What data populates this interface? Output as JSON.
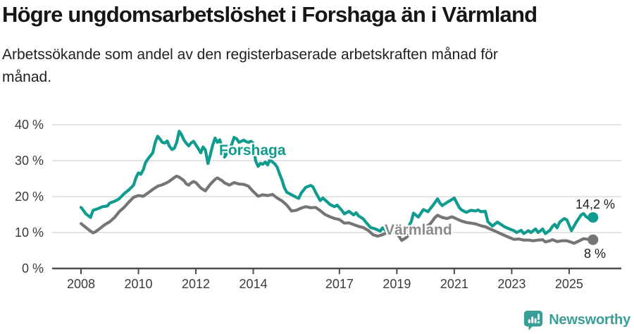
{
  "header": {
    "title": "Högre ungdomsarbetslöshet i Forshaga än i Värmland",
    "subtitle": "Arbetssökande som andel av den registerbaserade arbetskraften månad för\nmånad."
  },
  "footer": {
    "brand": "Newsworthy"
  },
  "colors": {
    "forshaga": "#0f9b8e",
    "varmland": "#757575",
    "varmland_label": "#8a8a8a",
    "grid": "#dbdbdb",
    "axis": "#4c4c4c",
    "tick_text": "#3b3b3b",
    "value_text": "#1c1c1c",
    "logo_teal": "#3a9e98",
    "background": "#ffffff"
  },
  "chart_data": {
    "type": "line",
    "title": "Högre ungdomsarbetslöshet i Forshaga än i Värmland",
    "subtitle": "Arbetssökande som andel av den registerbaserade arbetskraften månad för månad.",
    "xlabel": "",
    "ylabel": "",
    "x_unit": "year (monthly observations)",
    "y_unit": "%",
    "ylim": [
      0,
      40
    ],
    "xlim": [
      2007,
      2026.6
    ],
    "grid": "horizontal",
    "legend_position": "inline-labels",
    "yticks": [
      {
        "value": 0,
        "label": "0 %"
      },
      {
        "value": 10,
        "label": "10 %"
      },
      {
        "value": 20,
        "label": "20 %"
      },
      {
        "value": 30,
        "label": "30 %"
      },
      {
        "value": 40,
        "label": "40 %"
      }
    ],
    "xticks": [
      {
        "value": 2008,
        "label": "2008"
      },
      {
        "value": 2010,
        "label": "2010"
      },
      {
        "value": 2012,
        "label": "2012"
      },
      {
        "value": 2014,
        "label": "2014"
      },
      {
        "value": 2017,
        "label": "2017"
      },
      {
        "value": 2019,
        "label": "2019"
      },
      {
        "value": 2021,
        "label": "2021"
      },
      {
        "value": 2023,
        "label": "2023"
      },
      {
        "value": 2025,
        "label": "2025"
      }
    ],
    "series": [
      {
        "name": "Forshaga",
        "inline_label": "Forshaga",
        "end_label": "14,2 %",
        "last_value": 14.2,
        "color": "#0f9b8e",
        "points": [
          [
            2008.0,
            17.0
          ],
          [
            2008.08,
            16.2
          ],
          [
            2008.17,
            15.2
          ],
          [
            2008.33,
            14.2
          ],
          [
            2008.42,
            16.2
          ],
          [
            2008.5,
            16.4
          ],
          [
            2008.58,
            16.6
          ],
          [
            2008.75,
            17.2
          ],
          [
            2008.92,
            17.4
          ],
          [
            2009.0,
            18.2
          ],
          [
            2009.17,
            18.7
          ],
          [
            2009.33,
            19.4
          ],
          [
            2009.5,
            20.8
          ],
          [
            2009.67,
            21.9
          ],
          [
            2009.83,
            23.2
          ],
          [
            2009.92,
            25.4
          ],
          [
            2010.0,
            26.6
          ],
          [
            2010.08,
            26.2
          ],
          [
            2010.17,
            27.5
          ],
          [
            2010.25,
            29.5
          ],
          [
            2010.33,
            30.5
          ],
          [
            2010.5,
            32.2
          ],
          [
            2010.58,
            35.0
          ],
          [
            2010.67,
            36.8
          ],
          [
            2010.75,
            36.0
          ],
          [
            2010.83,
            35.1
          ],
          [
            2010.92,
            34.9
          ],
          [
            2011.0,
            35.5
          ],
          [
            2011.08,
            34.0
          ],
          [
            2011.17,
            33.1
          ],
          [
            2011.25,
            33.5
          ],
          [
            2011.33,
            35.0
          ],
          [
            2011.42,
            38.2
          ],
          [
            2011.5,
            37.2
          ],
          [
            2011.58,
            35.8
          ],
          [
            2011.67,
            34.8
          ],
          [
            2011.75,
            34.1
          ],
          [
            2011.83,
            34.9
          ],
          [
            2011.92,
            35.4
          ],
          [
            2012.0,
            34.4
          ],
          [
            2012.08,
            33.4
          ],
          [
            2012.17,
            32.2
          ],
          [
            2012.25,
            33.8
          ],
          [
            2012.33,
            33.0
          ],
          [
            2012.42,
            29.2
          ],
          [
            2012.5,
            31.5
          ],
          [
            2012.58,
            34.2
          ],
          [
            2012.67,
            36.3
          ],
          [
            2012.75,
            35.1
          ],
          [
            2012.83,
            35.8
          ],
          [
            2012.92,
            33.4
          ],
          [
            2013.0,
            31.0
          ],
          [
            2013.08,
            32.0
          ],
          [
            2013.17,
            33.4
          ],
          [
            2013.25,
            34.5
          ],
          [
            2013.33,
            36.5
          ],
          [
            2013.42,
            36.1
          ],
          [
            2013.5,
            35.1
          ],
          [
            2013.58,
            35.4
          ],
          [
            2013.67,
            35.7
          ],
          [
            2013.75,
            35.3
          ],
          [
            2013.83,
            35.1
          ],
          [
            2013.92,
            35.4
          ],
          [
            2014.0,
            34.8
          ],
          [
            2014.08,
            30.0
          ],
          [
            2014.17,
            28.4
          ],
          [
            2014.25,
            29.3
          ],
          [
            2014.33,
            29.0
          ],
          [
            2014.42,
            29.6
          ],
          [
            2014.5,
            28.8
          ],
          [
            2014.58,
            30.3
          ],
          [
            2014.67,
            29.6
          ],
          [
            2014.75,
            29.1
          ],
          [
            2014.83,
            28.2
          ],
          [
            2014.92,
            26.2
          ],
          [
            2015.0,
            24.6
          ],
          [
            2015.08,
            22.5
          ],
          [
            2015.17,
            21.2
          ],
          [
            2015.33,
            20.5
          ],
          [
            2015.5,
            19.8
          ],
          [
            2015.58,
            19.5
          ],
          [
            2015.67,
            21.0
          ],
          [
            2015.83,
            22.6
          ],
          [
            2016.0,
            23.1
          ],
          [
            2016.08,
            22.7
          ],
          [
            2016.17,
            21.2
          ],
          [
            2016.33,
            18.9
          ],
          [
            2016.42,
            19.6
          ],
          [
            2016.58,
            18.5
          ],
          [
            2016.67,
            17.8
          ],
          [
            2016.83,
            17.2
          ],
          [
            2016.92,
            17.6
          ],
          [
            2017.08,
            16.2
          ],
          [
            2017.17,
            15.2
          ],
          [
            2017.33,
            15.9
          ],
          [
            2017.5,
            14.9
          ],
          [
            2017.58,
            15.5
          ],
          [
            2017.67,
            14.6
          ],
          [
            2017.83,
            13.8
          ],
          [
            2017.92,
            12.9
          ],
          [
            2018.08,
            11.4
          ],
          [
            2018.25,
            11.0
          ],
          [
            2018.42,
            10.4
          ],
          [
            2018.5,
            11.3
          ],
          [
            2018.67,
            10.2
          ],
          [
            2018.83,
            10.0
          ],
          [
            2019.0,
            10.3
          ],
          [
            2019.17,
            9.6
          ],
          [
            2019.33,
            10.6
          ],
          [
            2019.5,
            13.0
          ],
          [
            2019.58,
            15.4
          ],
          [
            2019.75,
            14.3
          ],
          [
            2019.92,
            16.4
          ],
          [
            2020.08,
            15.8
          ],
          [
            2020.25,
            17.5
          ],
          [
            2020.42,
            19.4
          ],
          [
            2020.5,
            18.2
          ],
          [
            2020.58,
            17.5
          ],
          [
            2020.75,
            18.4
          ],
          [
            2020.92,
            19.2
          ],
          [
            2021.0,
            19.6
          ],
          [
            2021.17,
            17.0
          ],
          [
            2021.25,
            16.3
          ],
          [
            2021.42,
            15.6
          ],
          [
            2021.58,
            16.2
          ],
          [
            2021.75,
            16.0
          ],
          [
            2021.83,
            16.3
          ],
          [
            2021.92,
            15.8
          ],
          [
            2022.08,
            15.9
          ],
          [
            2022.17,
            13.0
          ],
          [
            2022.33,
            11.8
          ],
          [
            2022.5,
            12.9
          ],
          [
            2022.58,
            12.5
          ],
          [
            2022.75,
            11.6
          ],
          [
            2022.92,
            11.0
          ],
          [
            2023.08,
            10.5
          ],
          [
            2023.17,
            10.0
          ],
          [
            2023.33,
            10.6
          ],
          [
            2023.42,
            9.7
          ],
          [
            2023.58,
            10.5
          ],
          [
            2023.67,
            10.0
          ],
          [
            2023.83,
            11.0
          ],
          [
            2023.92,
            10.0
          ],
          [
            2024.08,
            11.0
          ],
          [
            2024.17,
            9.7
          ],
          [
            2024.33,
            10.6
          ],
          [
            2024.42,
            11.7
          ],
          [
            2024.5,
            12.3
          ],
          [
            2024.58,
            11.3
          ],
          [
            2024.67,
            12.9
          ],
          [
            2024.83,
            13.9
          ],
          [
            2024.92,
            13.5
          ],
          [
            2025.08,
            10.5
          ],
          [
            2025.25,
            12.9
          ],
          [
            2025.42,
            14.9
          ],
          [
            2025.5,
            15.3
          ],
          [
            2025.58,
            14.5
          ],
          [
            2025.67,
            14.0
          ],
          [
            2025.83,
            14.2
          ]
        ]
      },
      {
        "name": "Värmland",
        "inline_label": "Värmland",
        "end_label": "8 %",
        "last_value": 8.0,
        "color": "#757575",
        "points": [
          [
            2008.0,
            12.5
          ],
          [
            2008.17,
            11.4
          ],
          [
            2008.33,
            10.4
          ],
          [
            2008.42,
            9.9
          ],
          [
            2008.5,
            10.2
          ],
          [
            2008.67,
            11.2
          ],
          [
            2008.83,
            12.2
          ],
          [
            2009.0,
            13.0
          ],
          [
            2009.17,
            14.2
          ],
          [
            2009.33,
            15.8
          ],
          [
            2009.5,
            17.0
          ],
          [
            2009.67,
            18.5
          ],
          [
            2009.83,
            19.8
          ],
          [
            2010.0,
            20.3
          ],
          [
            2010.17,
            20.1
          ],
          [
            2010.33,
            21.0
          ],
          [
            2010.5,
            22.0
          ],
          [
            2010.67,
            22.9
          ],
          [
            2010.83,
            23.3
          ],
          [
            2011.0,
            23.9
          ],
          [
            2011.08,
            24.3
          ],
          [
            2011.25,
            25.3
          ],
          [
            2011.33,
            25.7
          ],
          [
            2011.42,
            25.4
          ],
          [
            2011.58,
            24.5
          ],
          [
            2011.67,
            23.5
          ],
          [
            2011.75,
            23.2
          ],
          [
            2011.83,
            23.8
          ],
          [
            2011.92,
            24.2
          ],
          [
            2012.0,
            23.9
          ],
          [
            2012.17,
            22.4
          ],
          [
            2012.33,
            21.6
          ],
          [
            2012.5,
            23.4
          ],
          [
            2012.67,
            24.8
          ],
          [
            2012.75,
            25.2
          ],
          [
            2012.92,
            24.4
          ],
          [
            2013.0,
            23.8
          ],
          [
            2013.17,
            23.2
          ],
          [
            2013.33,
            23.9
          ],
          [
            2013.5,
            23.5
          ],
          [
            2013.67,
            23.4
          ],
          [
            2013.83,
            22.9
          ],
          [
            2014.0,
            21.4
          ],
          [
            2014.17,
            20.1
          ],
          [
            2014.33,
            20.5
          ],
          [
            2014.5,
            20.3
          ],
          [
            2014.67,
            20.6
          ],
          [
            2014.83,
            19.6
          ],
          [
            2015.0,
            18.8
          ],
          [
            2015.17,
            17.6
          ],
          [
            2015.33,
            16.0
          ],
          [
            2015.5,
            16.2
          ],
          [
            2015.67,
            16.8
          ],
          [
            2015.83,
            17.2
          ],
          [
            2016.0,
            16.9
          ],
          [
            2016.17,
            17.0
          ],
          [
            2016.33,
            16.1
          ],
          [
            2016.5,
            15.0
          ],
          [
            2016.67,
            14.4
          ],
          [
            2016.83,
            13.9
          ],
          [
            2017.0,
            13.6
          ],
          [
            2017.17,
            12.6
          ],
          [
            2017.33,
            12.7
          ],
          [
            2017.5,
            12.2
          ],
          [
            2017.67,
            11.7
          ],
          [
            2017.83,
            11.4
          ],
          [
            2018.0,
            10.6
          ],
          [
            2018.17,
            9.4
          ],
          [
            2018.33,
            9.0
          ],
          [
            2018.5,
            9.4
          ],
          [
            2018.67,
            10.0
          ],
          [
            2018.83,
            10.4
          ],
          [
            2019.0,
            9.8
          ],
          [
            2019.17,
            7.8
          ],
          [
            2019.33,
            8.6
          ],
          [
            2019.5,
            10.2
          ],
          [
            2019.67,
            10.7
          ],
          [
            2019.83,
            11.0
          ],
          [
            2020.0,
            11.4
          ],
          [
            2020.17,
            12.5
          ],
          [
            2020.33,
            14.2
          ],
          [
            2020.42,
            14.8
          ],
          [
            2020.58,
            14.2
          ],
          [
            2020.75,
            13.9
          ],
          [
            2020.92,
            14.4
          ],
          [
            2021.08,
            13.8
          ],
          [
            2021.25,
            13.2
          ],
          [
            2021.42,
            12.8
          ],
          [
            2021.58,
            12.6
          ],
          [
            2021.75,
            12.4
          ],
          [
            2021.92,
            11.9
          ],
          [
            2022.08,
            11.6
          ],
          [
            2022.25,
            11.0
          ],
          [
            2022.42,
            10.4
          ],
          [
            2022.58,
            9.8
          ],
          [
            2022.75,
            9.2
          ],
          [
            2022.92,
            8.6
          ],
          [
            2023.08,
            8.1
          ],
          [
            2023.25,
            8.2
          ],
          [
            2023.42,
            7.9
          ],
          [
            2023.58,
            7.9
          ],
          [
            2023.75,
            7.7
          ],
          [
            2023.92,
            7.9
          ],
          [
            2024.08,
            8.0
          ],
          [
            2024.17,
            7.4
          ],
          [
            2024.33,
            7.7
          ],
          [
            2024.42,
            8.0
          ],
          [
            2024.58,
            7.5
          ],
          [
            2024.75,
            7.7
          ],
          [
            2024.92,
            7.7
          ],
          [
            2025.08,
            7.3
          ],
          [
            2025.17,
            7.0
          ],
          [
            2025.33,
            7.6
          ],
          [
            2025.5,
            8.3
          ],
          [
            2025.67,
            8.1
          ],
          [
            2025.83,
            8.0
          ]
        ]
      }
    ]
  }
}
